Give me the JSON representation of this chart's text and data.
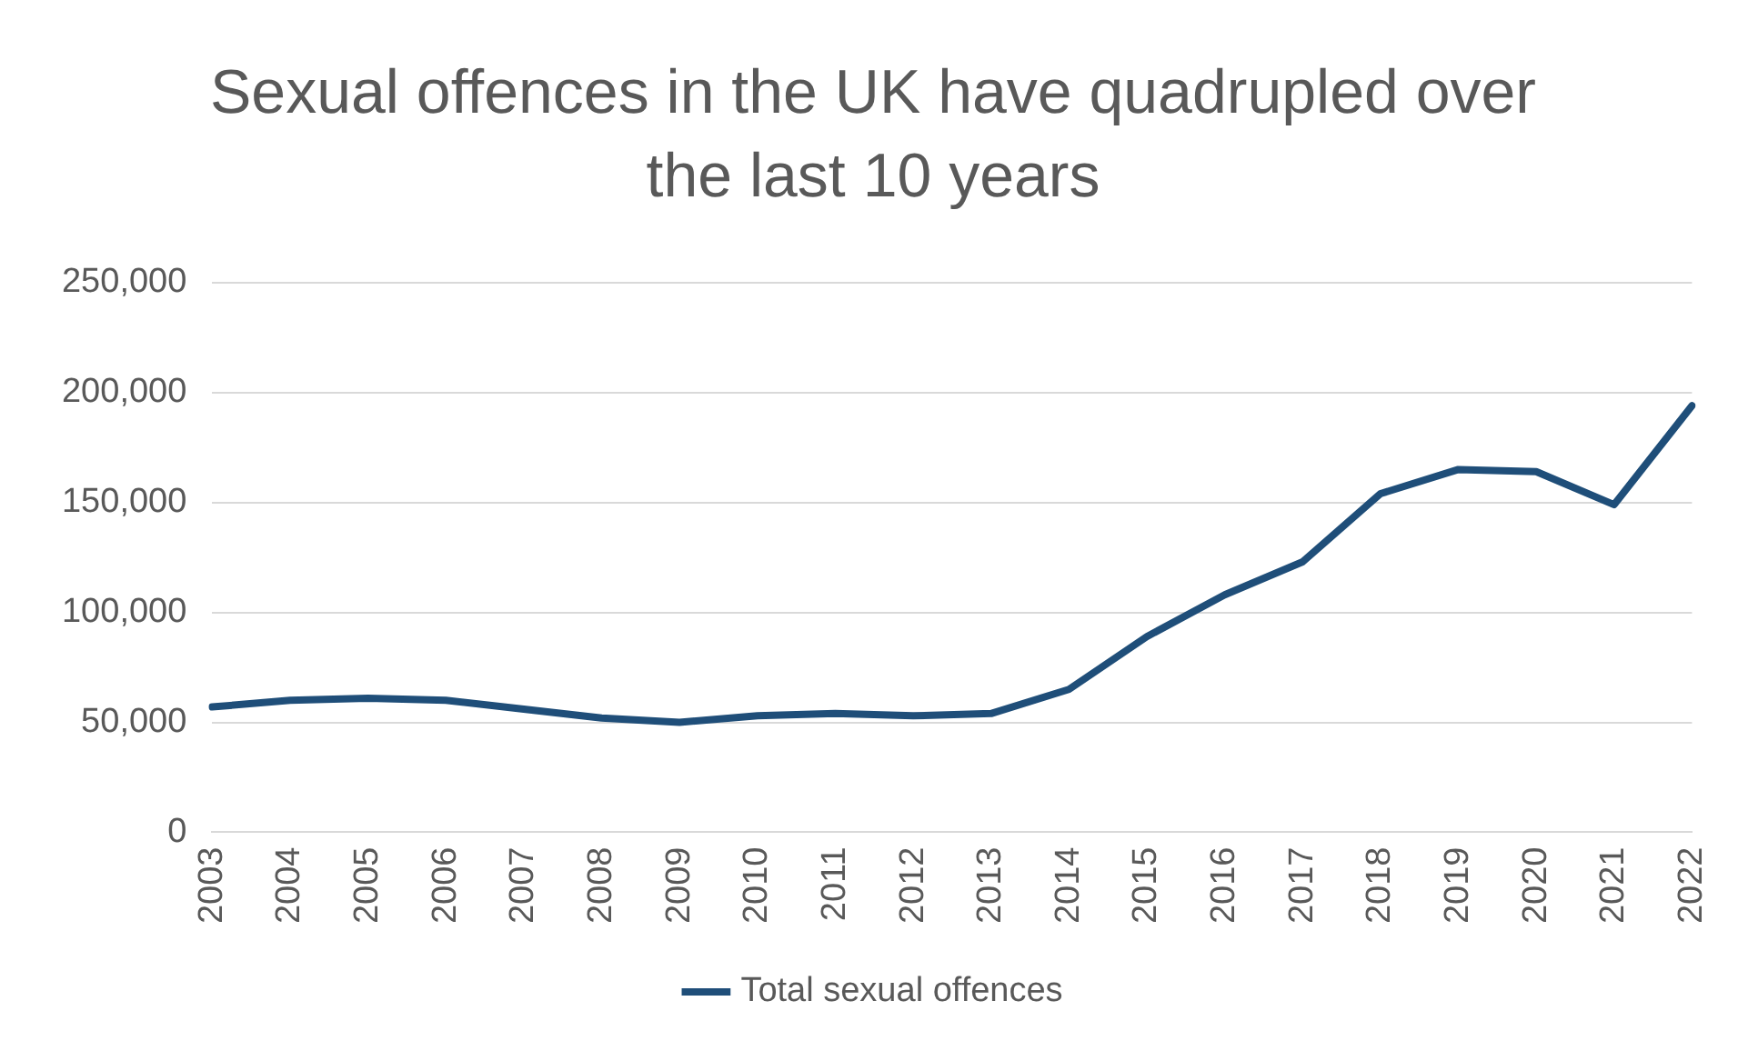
{
  "chart_data": {
    "type": "line",
    "title": "Sexual offences in the UK have quadrupled over the last 10 years",
    "categories": [
      "2003",
      "2004",
      "2005",
      "2006",
      "2007",
      "2008",
      "2009",
      "2010",
      "2011",
      "2012",
      "2013",
      "2014",
      "2015",
      "2016",
      "2017",
      "2018",
      "2019",
      "2020",
      "2021",
      "2022"
    ],
    "series": [
      {
        "name": "Total sexual offences",
        "color": "#1f4e79",
        "values": [
          57000,
          60000,
          61000,
          60000,
          56000,
          52000,
          50000,
          53000,
          54000,
          53000,
          54000,
          65000,
          89000,
          108000,
          123000,
          154000,
          165000,
          164000,
          149000,
          194000
        ]
      }
    ],
    "ylim": [
      0,
      250000
    ],
    "yticks": [
      {
        "value": 0,
        "label": "0"
      },
      {
        "value": 50000,
        "label": "50,000"
      },
      {
        "value": 100000,
        "label": "100,000"
      },
      {
        "value": 150000,
        "label": "150,000"
      },
      {
        "value": 200000,
        "label": "200,000"
      },
      {
        "value": 250000,
        "label": "250,000"
      }
    ],
    "grid": "y",
    "legend": "bottom",
    "marker": "none",
    "line_style": "solid"
  }
}
